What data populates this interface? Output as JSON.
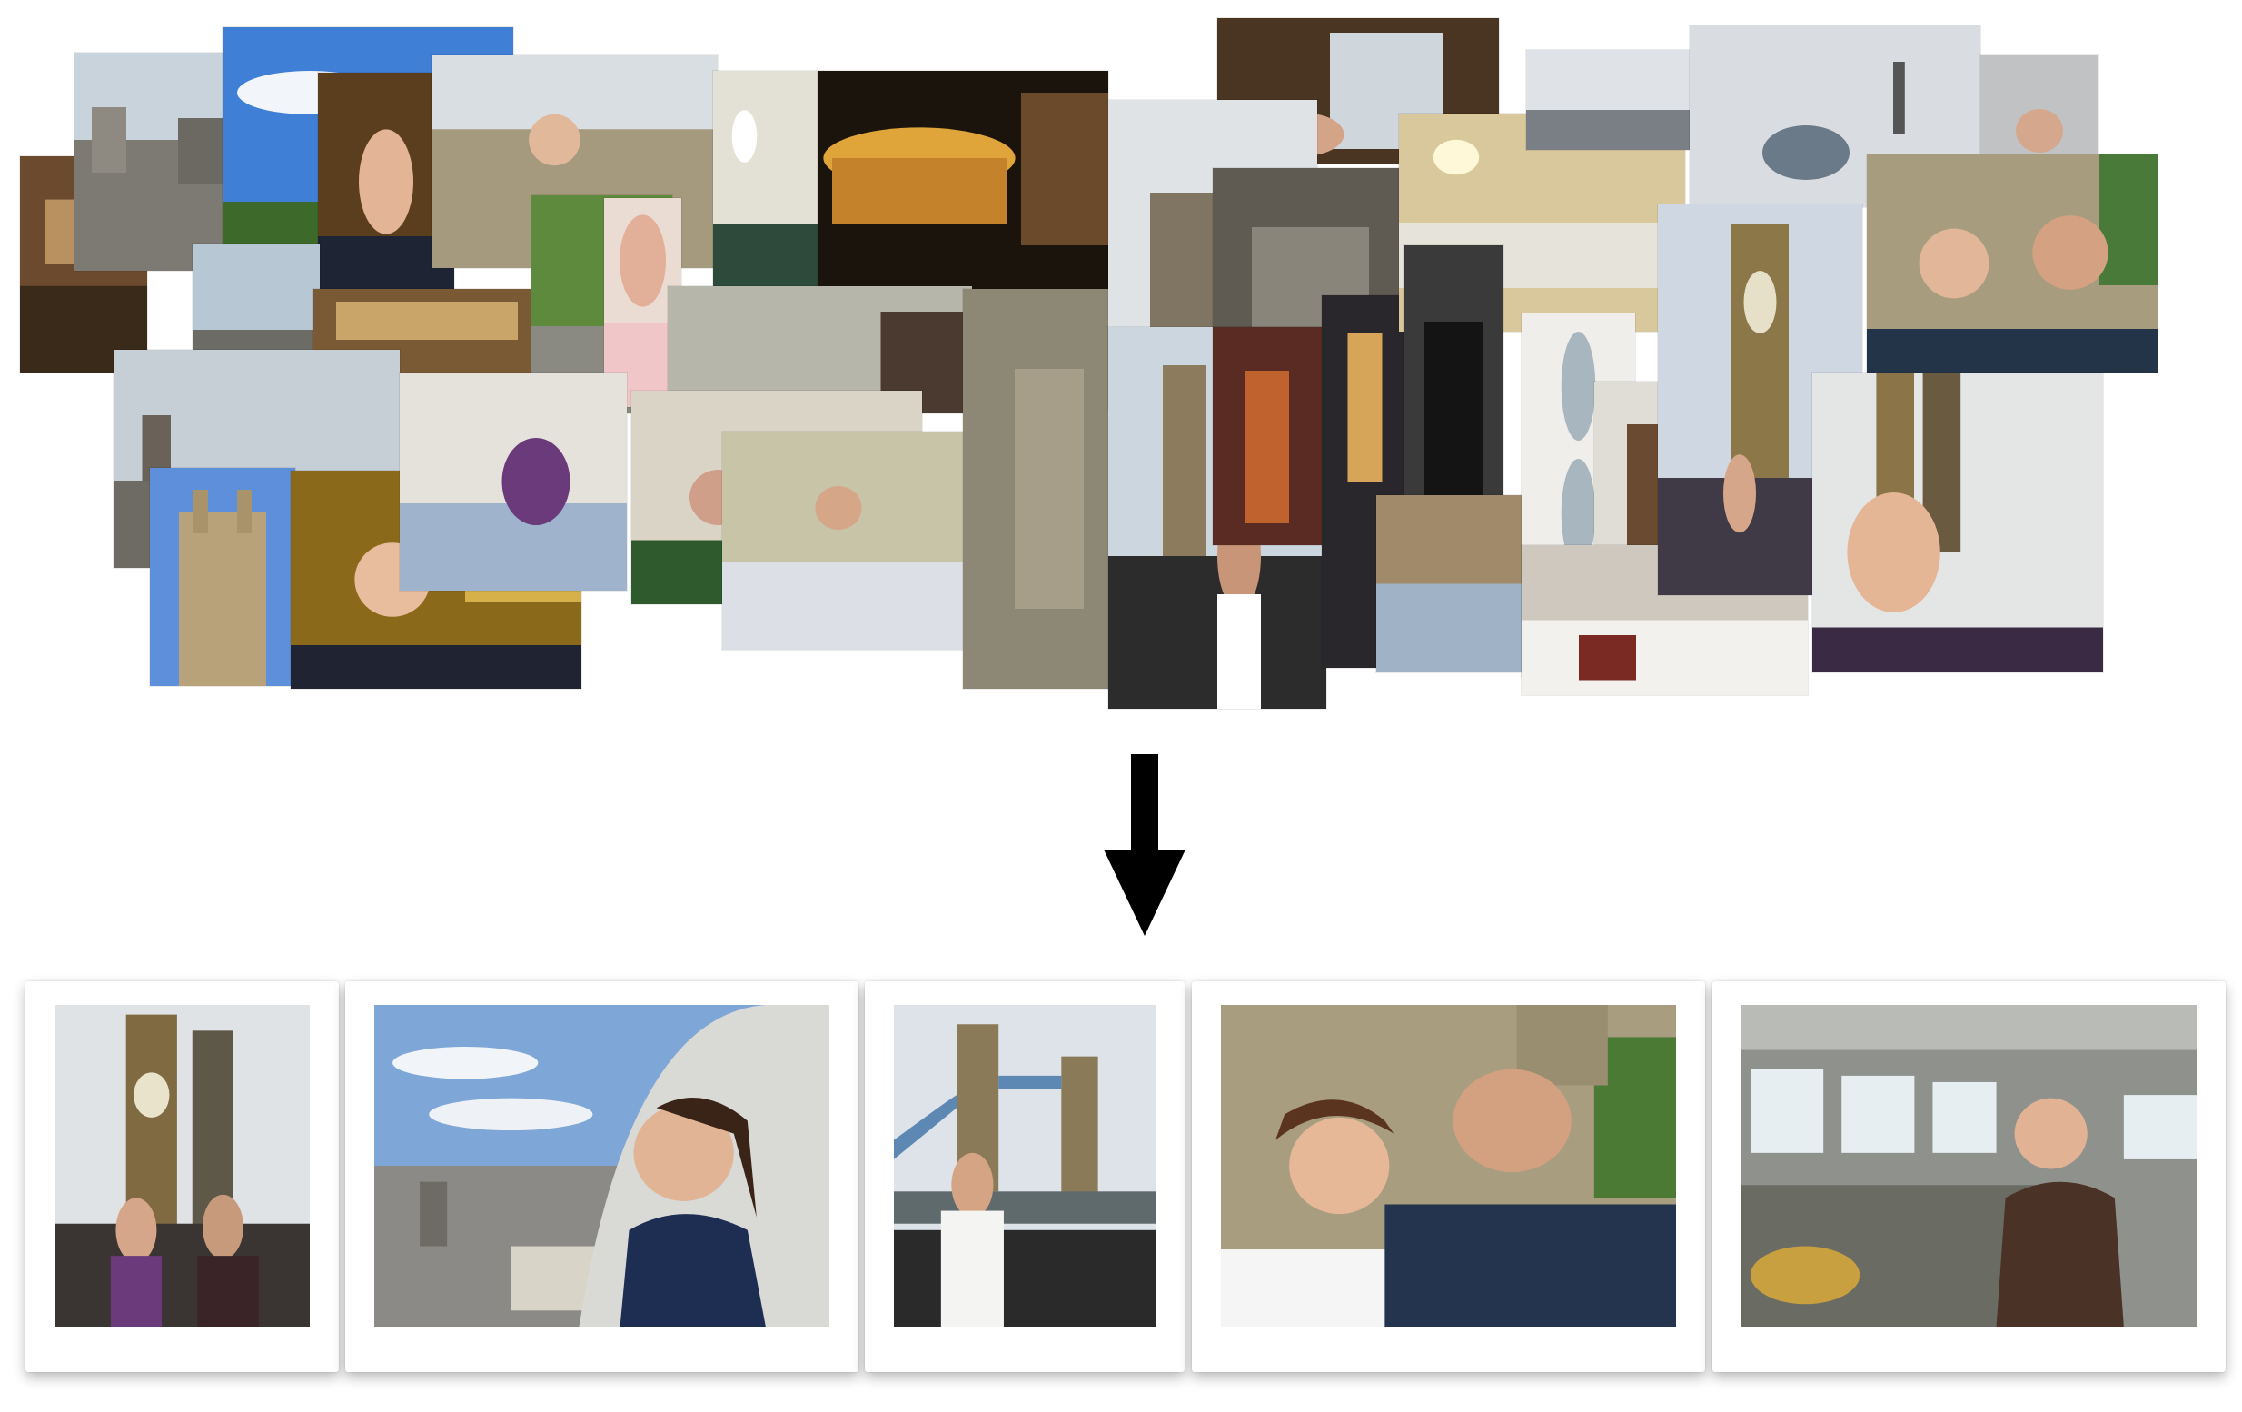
{
  "figure": {
    "description_role": "photo-collection-to-summary",
    "colors": {
      "sky": "#9cbad8",
      "stone": "#a79a7a",
      "night": "#1a140c",
      "interior": "#7a6a4a",
      "arrow": "#000000"
    },
    "icons": [
      "down-arrow-icon"
    ]
  }
}
